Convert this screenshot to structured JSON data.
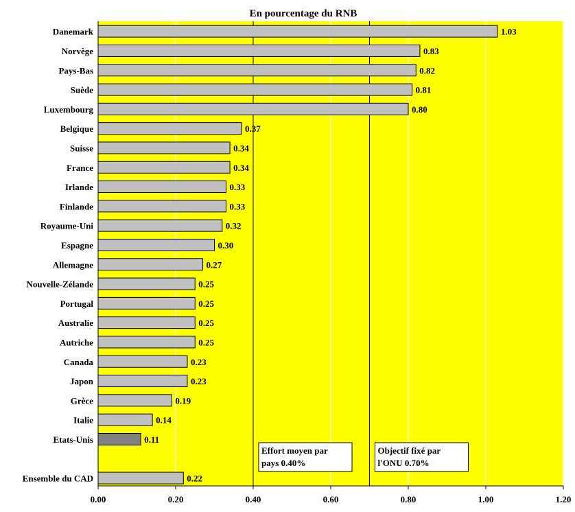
{
  "chart_data": {
    "type": "bar",
    "orientation": "horizontal",
    "title": "En pourcentage du RNB",
    "xlim": [
      0,
      1.2
    ],
    "xticks": [
      "0.00",
      "0.20",
      "0.40",
      "0.60",
      "0.80",
      "1.00",
      "1.20"
    ],
    "xtick_values": [
      0,
      0.2,
      0.4,
      0.6,
      0.8,
      1.0,
      1.2
    ],
    "grid": true,
    "colors": {
      "plot_background": "#ffff00",
      "bar_fill": "#c0c0c0",
      "highlight_bar_fill": "#808080",
      "gridline": "#ffffff"
    },
    "categories": [
      "Danemark",
      "Norvège",
      "Pays-Bas",
      "Suède",
      "Luxembourg",
      "Belgique",
      "Suisse",
      "France",
      "Irlande",
      "Finlande",
      "Royaume-Uni",
      "Espagne",
      "Allemagne",
      "Nouvelle-Zélande",
      "Portugal",
      "Australie",
      "Autriche",
      "Canada",
      "Japon",
      "Grèce",
      "Italie",
      "Etats-Unis",
      "",
      "Ensemble du CAD"
    ],
    "values": [
      1.03,
      0.83,
      0.82,
      0.81,
      0.8,
      0.37,
      0.34,
      0.34,
      0.33,
      0.33,
      0.32,
      0.3,
      0.27,
      0.25,
      0.25,
      0.25,
      0.25,
      0.23,
      0.23,
      0.19,
      0.14,
      0.11,
      null,
      0.22
    ],
    "value_labels": [
      "1.03",
      "0.83",
      "0.82",
      "0.81",
      "0.80",
      "0.37",
      "0.34",
      "0.34",
      "0.33",
      "0.33",
      "0.32",
      "0.30",
      "0.27",
      "0.25",
      "0.25",
      "0.25",
      "0.25",
      "0.23",
      "0.23",
      "0.19",
      "0.14",
      "0.11",
      "",
      "0.22"
    ],
    "highlight_index": 21,
    "reference_lines": [
      {
        "value": 0.4,
        "label_lines": [
          "Effort moyen par",
          "pays 0.40%"
        ]
      },
      {
        "value": 0.7,
        "label_lines": [
          "Objectif fixé par",
          "l'ONU 0.70%"
        ]
      }
    ]
  }
}
